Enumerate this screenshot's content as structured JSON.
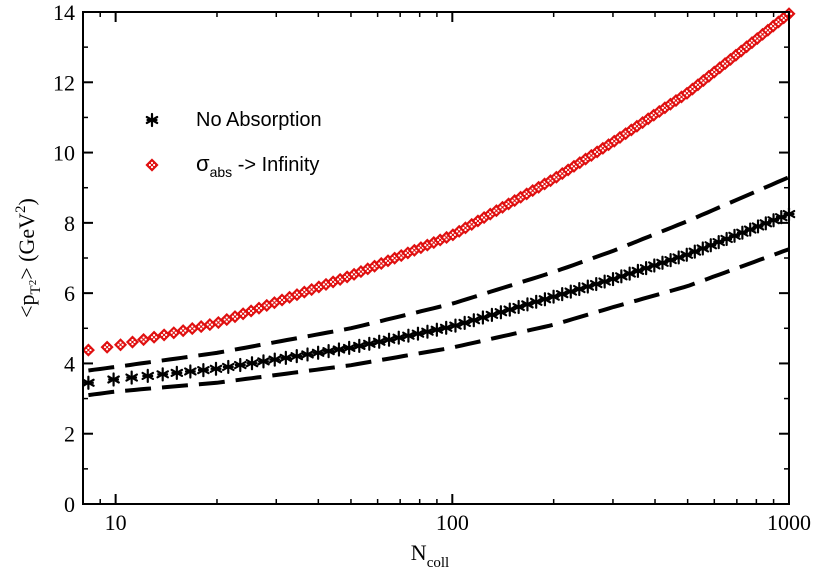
{
  "chart_data": {
    "type": "scatter",
    "xscale": "log",
    "xlim": [
      8,
      1000
    ],
    "ylim": [
      0,
      14
    ],
    "x_ticks": [
      {
        "value": 10,
        "label": "10"
      },
      {
        "value": 100,
        "label": "100"
      },
      {
        "value": 1000,
        "label": "1000"
      }
    ],
    "y_ticks": [
      {
        "value": 0,
        "label": "0"
      },
      {
        "value": 2,
        "label": "2"
      },
      {
        "value": 4,
        "label": "4"
      },
      {
        "value": 6,
        "label": "6"
      },
      {
        "value": 8,
        "label": "8"
      },
      {
        "value": 10,
        "label": "10"
      },
      {
        "value": 12,
        "label": "12"
      },
      {
        "value": 14,
        "label": "14"
      }
    ],
    "xlabel": {
      "main": "N",
      "sub": "coll"
    },
    "ylabel": {
      "open": "<p",
      "sub": "T",
      "sub2": "2",
      "close": ">",
      "unit": " (GeV",
      "sup": "2",
      "unit_close": ")"
    },
    "grid": false,
    "legend_position": "top-left",
    "legend": [
      {
        "series": "no_absorption",
        "label": "No Absorption",
        "marker": "asterisk",
        "color": "#000000"
      },
      {
        "series": "sigma_abs_infinity",
        "label_symbol": "σ",
        "label_sub": "abs",
        "label_rest": " -> Infinity",
        "marker": "diamond",
        "color": "#e01010"
      }
    ],
    "series": [
      {
        "name": "no_absorption",
        "style": "markers",
        "marker": "asterisk",
        "color": "#000000",
        "x_range": [
          8.3,
          1000
        ],
        "points": 72,
        "curve": {
          "x": [
            8.3,
            10,
            20,
            50,
            100,
            200,
            300,
            500,
            1000
          ],
          "y": [
            3.45,
            3.55,
            3.85,
            4.45,
            5.05,
            5.9,
            6.4,
            7.1,
            8.25
          ]
        }
      },
      {
        "name": "sigma_abs_infinity",
        "style": "markers",
        "marker": "diamond",
        "color": "#e01010",
        "x_range": [
          8.3,
          1000
        ],
        "points": 105,
        "curve": {
          "x": [
            8.3,
            10,
            20,
            50,
            100,
            200,
            300,
            500,
            1000
          ],
          "y": [
            4.38,
            4.5,
            5.15,
            6.5,
            7.65,
            9.25,
            10.3,
            11.7,
            13.95
          ]
        }
      },
      {
        "name": "upper_band",
        "style": "dashed",
        "color": "#000000",
        "curve": {
          "x": [
            8.3,
            10,
            20,
            50,
            100,
            200,
            300,
            500,
            1000
          ],
          "y": [
            3.8,
            3.9,
            4.3,
            5.0,
            5.7,
            6.6,
            7.2,
            8.05,
            9.3
          ]
        }
      },
      {
        "name": "lower_band",
        "style": "dashed",
        "color": "#000000",
        "curve": {
          "x": [
            8.3,
            10,
            20,
            50,
            100,
            200,
            300,
            500,
            1000
          ],
          "y": [
            3.1,
            3.2,
            3.45,
            3.95,
            4.45,
            5.1,
            5.6,
            6.2,
            7.25
          ]
        }
      }
    ]
  }
}
